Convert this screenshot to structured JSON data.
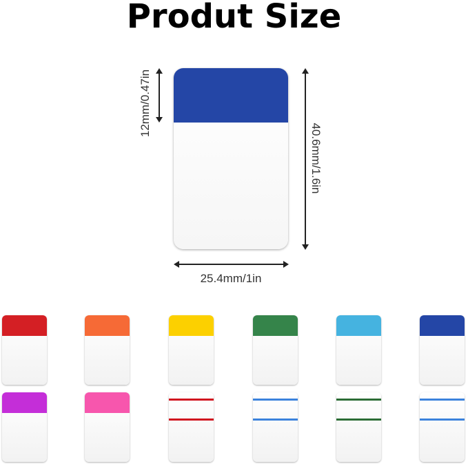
{
  "title": "Produt Size",
  "dimensions": {
    "height_colored": "12mm/0.47in",
    "height_total": "40.6mm/1.6in",
    "width": "25.4mm/1in"
  },
  "main_tab_color": "#2446a6",
  "tabs": [
    {
      "style": "solid",
      "color": "#d41f24"
    },
    {
      "style": "solid",
      "color": "#f66a36"
    },
    {
      "style": "solid",
      "color": "#fcd000"
    },
    {
      "style": "solid",
      "color": "#35844a"
    },
    {
      "style": "solid",
      "color": "#45b3e0"
    },
    {
      "style": "solid",
      "color": "#2446a6"
    },
    {
      "style": "solid",
      "color": "#c42ed8"
    },
    {
      "style": "solid",
      "color": "#f756ad"
    },
    {
      "style": "lines",
      "color": "#d0121e"
    },
    {
      "style": "lines",
      "color": "#3b82dc"
    },
    {
      "style": "lines",
      "color": "#2b6c35"
    },
    {
      "style": "lines",
      "color": "#3b82dc"
    }
  ]
}
